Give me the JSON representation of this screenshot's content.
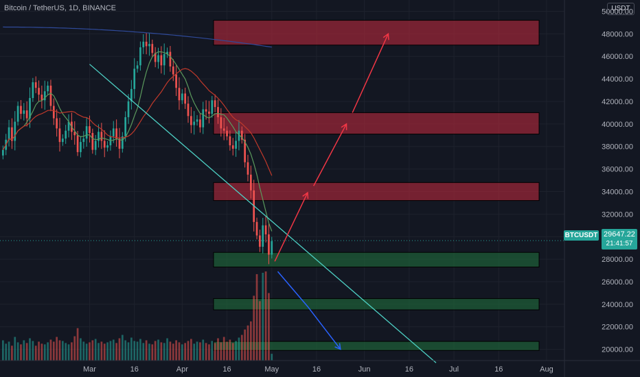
{
  "title": "Bitcoin / TetherUS, 1D, BINANCE",
  "currency": "USDT",
  "symbol": "BTCUSDT",
  "last_price": "29647.22",
  "countdown": "21:41:57",
  "colors": {
    "background": "#131722",
    "up": "#26a69a",
    "down": "#ef5350",
    "resistance_zone": "#b2283a",
    "support_zone": "#1f6b3a",
    "trendline": "#4dd0c4",
    "bullish_arrow": "#f23645",
    "bearish_arrow": "#2962ff"
  },
  "chart_data": {
    "type": "candlestick",
    "title": "Bitcoin / TetherUS, 1D, BINANCE",
    "ylim": [
      19000,
      51000
    ],
    "y_ticks": [
      "50000.00",
      "48000.00",
      "46000.00",
      "44000.00",
      "42000.00",
      "40000.00",
      "38000.00",
      "36000.00",
      "34000.00",
      "32000.00",
      "30000.00",
      "28000.00",
      "26000.00",
      "24000.00",
      "22000.00",
      "20000.00"
    ],
    "x_ticks": [
      "Mar",
      "16",
      "Apr",
      "16",
      "May",
      "16",
      "Jun",
      "16",
      "Jul",
      "16",
      "Aug"
    ],
    "x_tick_days": [
      0,
      15,
      31,
      46,
      61,
      76,
      92,
      107,
      122,
      137,
      153
    ],
    "x_range_days": [
      -30,
      159
    ],
    "closes": [
      37700,
      38600,
      39700,
      38500,
      40200,
      41600,
      40900,
      41200,
      40500,
      42300,
      43700,
      43200,
      42600,
      42100,
      42900,
      43400,
      41600,
      40500,
      39600,
      38400,
      38700,
      39400,
      40200,
      39300,
      39000,
      37500,
      38400,
      38700,
      39800,
      39200,
      37700,
      38500,
      39300,
      38500,
      37900,
      38100,
      38900,
      39600,
      38700,
      37800,
      38900,
      40600,
      42000,
      43100,
      44900,
      45200,
      46800,
      47300,
      46900,
      47100,
      46300,
      45500,
      46100,
      45200,
      46200,
      46400,
      45100,
      44400,
      43200,
      42100,
      42700,
      41800,
      40700,
      39900,
      40200,
      40400,
      39700,
      41300,
      41100,
      40900,
      42100,
      41500,
      40600,
      39600,
      39400,
      38900,
      38100,
      37800,
      38500,
      39400,
      38600,
      36600,
      35500,
      34100,
      31300,
      30100,
      29100,
      31000,
      30200,
      28400,
      29600
    ],
    "volumes": [
      30,
      25,
      28,
      22,
      35,
      27,
      24,
      30,
      26,
      33,
      29,
      22,
      28,
      25,
      24,
      27,
      31,
      28,
      35,
      30,
      29,
      26,
      24,
      27,
      36,
      48,
      33,
      28,
      25,
      27,
      30,
      32,
      26,
      28,
      25,
      27,
      29,
      31,
      26,
      33,
      38,
      30,
      27,
      34,
      29,
      28,
      32,
      26,
      30,
      25,
      24,
      29,
      31,
      27,
      26,
      33,
      28,
      25,
      30,
      27,
      24,
      26,
      29,
      32,
      25,
      28,
      27,
      31,
      26,
      24,
      29,
      26,
      33,
      27,
      35,
      28,
      31,
      26,
      29,
      34,
      38,
      46,
      52,
      58,
      96,
      128,
      88,
      130,
      132,
      100,
      10
    ],
    "ma_fast": {
      "name": "",
      "color": "#5b9a5d"
    },
    "ma_slow": {
      "name": "",
      "color": "#c0392b"
    },
    "ma_long": {
      "name": "",
      "color": "#2f4a9a"
    },
    "zones": [
      {
        "kind": "resistance",
        "low": 47000,
        "high": 49200
      },
      {
        "kind": "resistance",
        "low": 39100,
        "high": 41000
      },
      {
        "kind": "resistance",
        "low": 33200,
        "high": 34800
      },
      {
        "kind": "support",
        "low": 27300,
        "high": 28600
      },
      {
        "kind": "support",
        "low": 23500,
        "high": 24500
      },
      {
        "kind": "support",
        "low": 19900,
        "high": 20700
      }
    ],
    "trendline": {
      "from": {
        "day": 0,
        "price": 45300
      },
      "to": {
        "day": 116,
        "price": 18800
      }
    },
    "bullish_path": [
      {
        "day": 62,
        "price": 27800
      },
      {
        "day": 73,
        "price": 33900
      }
    ],
    "bullish_path_2": [
      {
        "day": 75,
        "price": 34500
      },
      {
        "day": 86,
        "price": 40000
      }
    ],
    "bullish_path_3": [
      {
        "day": 88,
        "price": 41000
      },
      {
        "day": 100,
        "price": 48000
      }
    ],
    "bearish_path": [
      {
        "day": 63,
        "price": 26900
      },
      {
        "day": 73,
        "price": 23800
      },
      {
        "day": 84,
        "price": 20000
      }
    ]
  }
}
